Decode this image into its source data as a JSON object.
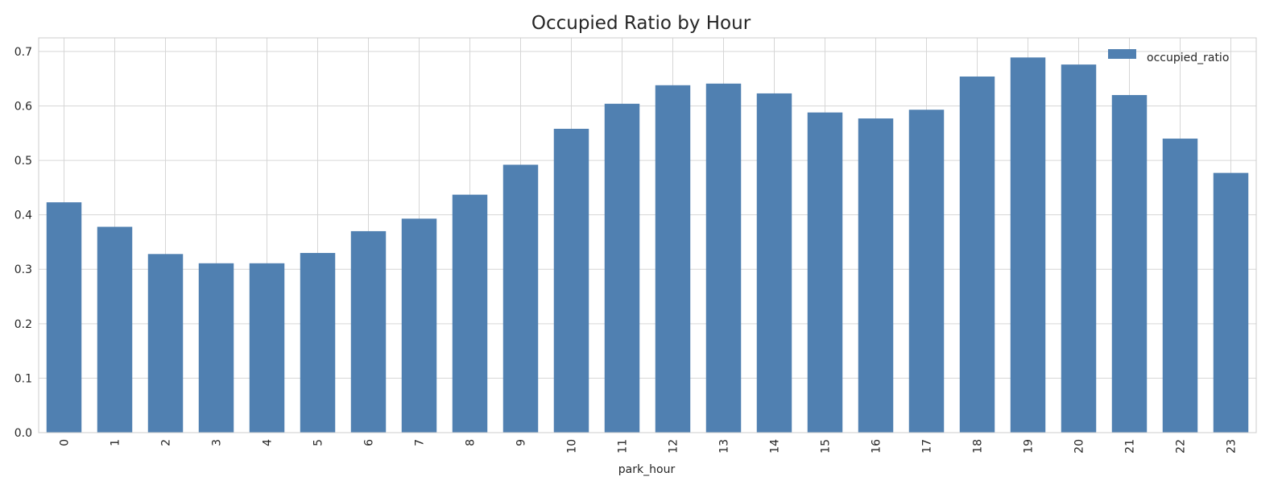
{
  "chart_data": {
    "type": "bar",
    "title": "Occupied Ratio by Hour",
    "xlabel": "park_hour",
    "ylabel": "",
    "categories": [
      "0",
      "1",
      "2",
      "3",
      "4",
      "5",
      "6",
      "7",
      "8",
      "9",
      "10",
      "11",
      "12",
      "13",
      "14",
      "15",
      "16",
      "17",
      "18",
      "19",
      "20",
      "21",
      "22",
      "23"
    ],
    "series": [
      {
        "name": "occupied_ratio",
        "values": [
          0.423,
          0.378,
          0.328,
          0.311,
          0.311,
          0.33,
          0.37,
          0.393,
          0.437,
          0.492,
          0.558,
          0.604,
          0.638,
          0.641,
          0.623,
          0.588,
          0.577,
          0.593,
          0.654,
          0.689,
          0.676,
          0.62,
          0.54,
          0.477
        ]
      }
    ],
    "ylim": [
      0,
      0.725
    ],
    "yticks": [
      "0.0",
      "0.1",
      "0.2",
      "0.3",
      "0.4",
      "0.5",
      "0.6",
      "0.7"
    ],
    "grid": true,
    "legend_position": "top-right",
    "colors": {
      "bar": "#5080b1",
      "grid": "#d6d6d6",
      "frame": "#cccccc"
    }
  }
}
